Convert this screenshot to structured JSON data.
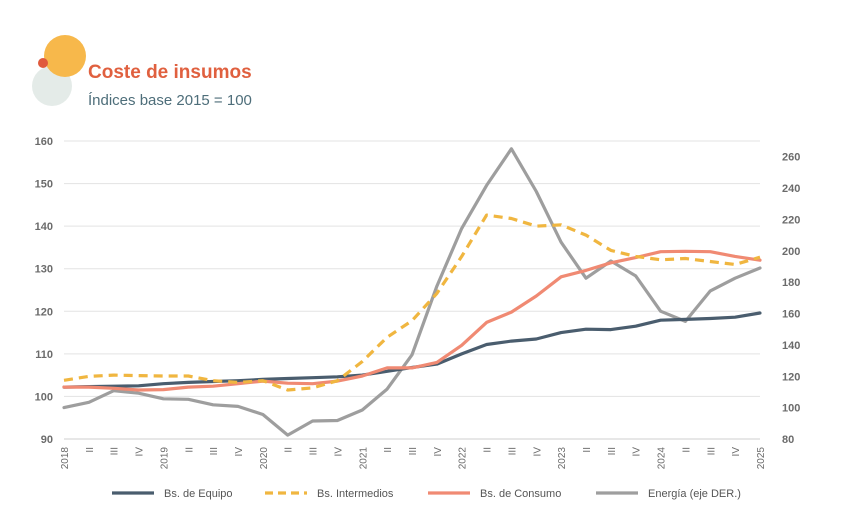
{
  "header": {
    "title": "Coste de insumos",
    "subtitle": "Índices base 2015 = 100"
  },
  "colors": {
    "title": "#e0603f",
    "subtitle": "#4e6e7a",
    "logo_circle_large": "#f7b84b",
    "logo_circle_light": "#e4ebe8",
    "logo_dot": "#e05a3c"
  },
  "chart_data": {
    "type": "line",
    "x": [
      "2018",
      "II",
      "III",
      "IV",
      "2019",
      "II",
      "III",
      "IV",
      "2020",
      "II",
      "III",
      "IV",
      "2021",
      "II",
      "III",
      "IV",
      "2022",
      "II",
      "III",
      "IV",
      "2023",
      "II",
      "III",
      "IV",
      "2024",
      "II",
      "III",
      "IV",
      "2025"
    ],
    "y_left": {
      "ylim": [
        90,
        160
      ],
      "ticks": [
        90,
        100,
        110,
        120,
        130,
        140,
        150,
        160
      ]
    },
    "y_right": {
      "ylim": [
        80,
        270
      ],
      "ticks": [
        80,
        100,
        120,
        140,
        160,
        180,
        200,
        220,
        240,
        260
      ]
    },
    "grid": true,
    "legend_position": "bottom",
    "series": [
      {
        "name": "Bs. de Equipo",
        "axis": "left",
        "style": "solid",
        "color": "#4a5d6e",
        "values": [
          102.2,
          102.3,
          102.4,
          102.5,
          103.0,
          103.3,
          103.5,
          103.7,
          104.0,
          104.2,
          104.4,
          104.6,
          105.0,
          105.9,
          106.8,
          107.6,
          110.0,
          112.2,
          113.0,
          113.5,
          115.0,
          115.8,
          115.7,
          116.5,
          117.9,
          118.1,
          118.3,
          118.6,
          119.6
        ]
      },
      {
        "name": "Bs. Intermedios",
        "axis": "left",
        "style": "dashed",
        "color": "#f0b640",
        "values": [
          103.8,
          104.7,
          105.0,
          104.9,
          104.8,
          104.8,
          103.7,
          103.3,
          103.7,
          101.5,
          102.0,
          103.7,
          108.2,
          113.9,
          117.8,
          124.2,
          132.9,
          142.6,
          141.8,
          140.0,
          140.3,
          137.9,
          134.3,
          132.9,
          132.1,
          132.4,
          131.7,
          131.0,
          132.7
        ]
      },
      {
        "name": "Bs. de Consumo",
        "axis": "left",
        "style": "solid",
        "color": "#f08a73",
        "values": [
          102.2,
          102.2,
          101.9,
          101.5,
          101.6,
          102.2,
          102.4,
          103.0,
          103.6,
          103.1,
          103.0,
          103.6,
          104.8,
          106.7,
          106.7,
          108.0,
          112.0,
          117.4,
          119.8,
          123.6,
          128.1,
          129.6,
          131.4,
          132.6,
          134.0,
          134.1,
          134.0,
          132.9,
          132.0
        ]
      },
      {
        "name": "Energía (eje DER.)",
        "axis": "right",
        "style": "solid",
        "color": "#9e9e9e",
        "values": [
          100.0,
          103.4,
          110.8,
          109.2,
          105.6,
          105.3,
          101.8,
          100.8,
          95.6,
          82.5,
          91.5,
          91.8,
          98.5,
          111.8,
          133.7,
          177.5,
          214.3,
          241.7,
          265.0,
          237.8,
          205.5,
          182.5,
          193.5,
          184.0,
          161.5,
          155.0,
          174.4,
          182.5,
          189.0
        ]
      }
    ]
  }
}
